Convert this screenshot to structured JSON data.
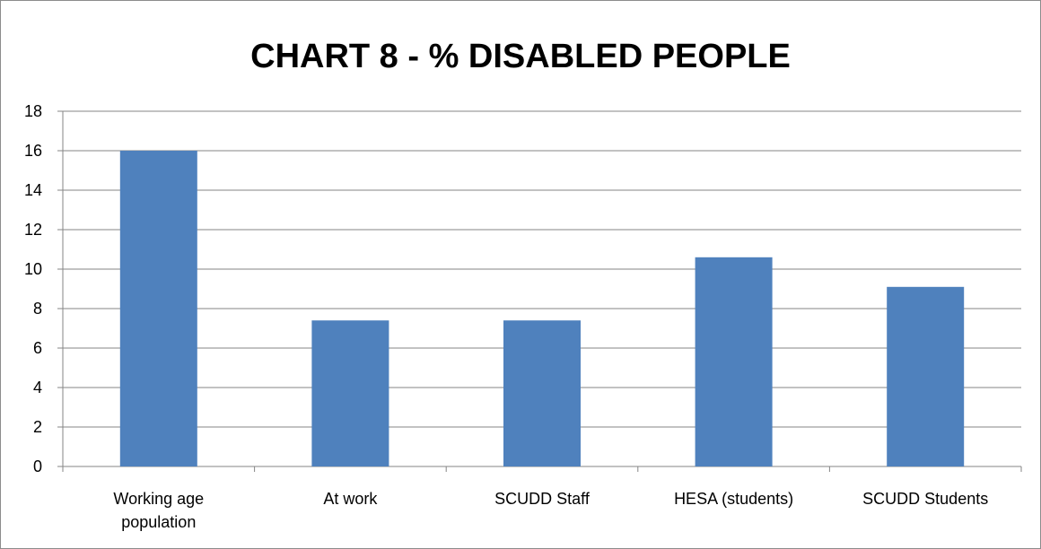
{
  "chart_data": {
    "type": "bar",
    "title": "CHART 8 - % DISABLED PEOPLE",
    "categories": [
      [
        "Working age",
        "population"
      ],
      [
        "At work"
      ],
      [
        "SCUDD Staff"
      ],
      [
        "HESA (students)"
      ],
      [
        "SCUDD Students"
      ]
    ],
    "values": [
      16,
      7.4,
      7.4,
      10.6,
      9.1
    ],
    "ylim": [
      0,
      18
    ],
    "ytick_step": 2,
    "yticks": [
      "0",
      "2",
      "4",
      "6",
      "8",
      "10",
      "12",
      "14",
      "16",
      "18"
    ],
    "grid": true,
    "legend": "none",
    "xlabel": "",
    "ylabel": "",
    "colors": {
      "bar": "#4f81bd",
      "grid": "#868686",
      "axis": "#868686"
    }
  }
}
